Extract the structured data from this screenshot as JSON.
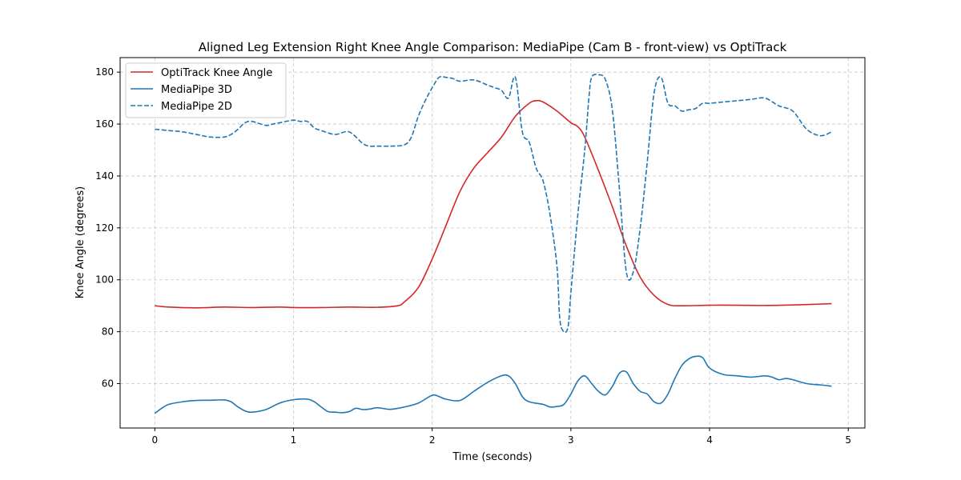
{
  "chart_data": {
    "type": "line",
    "title": "Aligned Leg Extension Right Knee Angle Comparison: MediaPipe (Cam B - front-view) vs OptiTrack",
    "xlabel": "Time (seconds)",
    "ylabel": "Knee Angle (degrees)",
    "xlim": [
      -0.25,
      5.12
    ],
    "ylim": [
      42.9,
      185.6
    ],
    "xticks": [
      0,
      1,
      2,
      3,
      4,
      5
    ],
    "yticks": [
      60,
      80,
      100,
      120,
      140,
      160,
      180
    ],
    "grid": true,
    "legend": "top-left",
    "series": [
      {
        "name": "OptiTrack Knee Angle",
        "color": "#d62728",
        "style": "solid",
        "x": [
          0.0,
          0.1,
          0.3,
          0.5,
          0.7,
          0.9,
          1.0,
          1.2,
          1.4,
          1.6,
          1.75,
          1.8,
          1.9,
          2.0,
          2.1,
          2.2,
          2.3,
          2.4,
          2.5,
          2.6,
          2.7,
          2.75,
          2.8,
          2.9,
          3.0,
          3.05,
          3.1,
          3.2,
          3.3,
          3.4,
          3.5,
          3.6,
          3.7,
          3.8,
          4.0,
          4.2,
          4.4,
          4.6,
          4.88
        ],
        "values": [
          90.0,
          89.5,
          89.2,
          89.5,
          89.3,
          89.5,
          89.3,
          89.3,
          89.5,
          89.4,
          90.0,
          91.5,
          97.0,
          108.0,
          121.0,
          134.0,
          143.0,
          149.0,
          155.0,
          163.0,
          168.0,
          169.0,
          168.5,
          165.0,
          160.5,
          159.0,
          155.0,
          142.0,
          128.0,
          113.0,
          101.0,
          94.0,
          90.5,
          90.0,
          90.2,
          90.2,
          90.1,
          90.3,
          90.8
        ]
      },
      {
        "name": "MediaPipe 3D",
        "color": "#1f77b4",
        "style": "solid",
        "x": [
          0.0,
          0.05,
          0.1,
          0.2,
          0.3,
          0.4,
          0.5,
          0.55,
          0.6,
          0.65,
          0.7,
          0.8,
          0.9,
          1.0,
          1.1,
          1.15,
          1.2,
          1.25,
          1.3,
          1.35,
          1.4,
          1.45,
          1.5,
          1.55,
          1.6,
          1.65,
          1.7,
          1.8,
          1.9,
          2.0,
          2.05,
          2.1,
          2.2,
          2.3,
          2.4,
          2.5,
          2.55,
          2.6,
          2.65,
          2.7,
          2.8,
          2.85,
          2.9,
          2.95,
          3.0,
          3.05,
          3.1,
          3.15,
          3.2,
          3.25,
          3.3,
          3.35,
          3.4,
          3.45,
          3.5,
          3.55,
          3.6,
          3.65,
          3.7,
          3.75,
          3.8,
          3.85,
          3.9,
          3.95,
          4.0,
          4.1,
          4.2,
          4.3,
          4.4,
          4.45,
          4.5,
          4.55,
          4.6,
          4.7,
          4.8,
          4.88
        ],
        "values": [
          48.5,
          50.5,
          52.0,
          53.0,
          53.5,
          53.6,
          53.7,
          53.0,
          51.0,
          49.5,
          49.0,
          50.0,
          52.5,
          53.8,
          54.0,
          53.0,
          51.0,
          49.2,
          49.0,
          48.8,
          49.2,
          50.5,
          50.0,
          50.2,
          50.7,
          50.4,
          50.1,
          51.0,
          52.5,
          55.5,
          55.0,
          54.0,
          53.5,
          57.0,
          60.5,
          63.0,
          63.0,
          60.0,
          55.0,
          53.0,
          52.0,
          51.0,
          51.2,
          52.0,
          56.0,
          61.0,
          63.0,
          60.0,
          57.0,
          55.7,
          59.0,
          64.0,
          64.5,
          60.0,
          57.0,
          56.0,
          53.0,
          52.5,
          56.0,
          62.0,
          67.0,
          69.5,
          70.5,
          70.0,
          66.0,
          63.5,
          63.0,
          62.5,
          63.0,
          62.5,
          61.5,
          62.0,
          61.5,
          60.0,
          59.5,
          59.0
        ]
      },
      {
        "name": "MediaPipe 2D",
        "color": "#1f77b4",
        "style": "dashed",
        "x": [
          0.0,
          0.1,
          0.2,
          0.3,
          0.4,
          0.5,
          0.55,
          0.6,
          0.65,
          0.7,
          0.8,
          0.85,
          0.9,
          1.0,
          1.05,
          1.1,
          1.15,
          1.2,
          1.3,
          1.4,
          1.5,
          1.55,
          1.6,
          1.7,
          1.8,
          1.85,
          1.9,
          1.95,
          2.0,
          2.05,
          2.1,
          2.15,
          2.2,
          2.3,
          2.4,
          2.45,
          2.5,
          2.55,
          2.6,
          2.65,
          2.7,
          2.75,
          2.8,
          2.85,
          2.9,
          2.92,
          2.95,
          2.98,
          3.0,
          3.05,
          3.1,
          3.13,
          3.15,
          3.2,
          3.25,
          3.3,
          3.35,
          3.4,
          3.45,
          3.5,
          3.55,
          3.6,
          3.65,
          3.7,
          3.75,
          3.8,
          3.85,
          3.9,
          3.95,
          4.0,
          4.1,
          4.2,
          4.3,
          4.4,
          4.5,
          4.6,
          4.7,
          4.8,
          4.88
        ],
        "values": [
          158.0,
          157.5,
          157.0,
          156.0,
          155.0,
          155.0,
          156.0,
          158.0,
          160.5,
          161.0,
          159.5,
          160.0,
          160.5,
          161.5,
          161.0,
          161.0,
          158.5,
          157.5,
          156.0,
          157.0,
          152.5,
          151.5,
          151.5,
          151.5,
          152.0,
          155.0,
          163.0,
          169.0,
          174.0,
          178.0,
          178.0,
          177.5,
          176.5,
          177.0,
          175.0,
          174.0,
          173.0,
          170.0,
          178.0,
          157.0,
          153.0,
          143.0,
          138.0,
          125.0,
          105.0,
          85.0,
          80.0,
          82.0,
          95.0,
          125.0,
          150.0,
          170.0,
          178.0,
          179.0,
          177.0,
          165.0,
          135.0,
          103.0,
          103.0,
          120.0,
          145.0,
          172.0,
          178.0,
          168.0,
          167.0,
          165.0,
          165.5,
          166.0,
          168.0,
          168.0,
          168.5,
          169.0,
          169.5,
          170.0,
          167.0,
          165.0,
          158.0,
          155.5,
          157.0
        ]
      }
    ]
  }
}
